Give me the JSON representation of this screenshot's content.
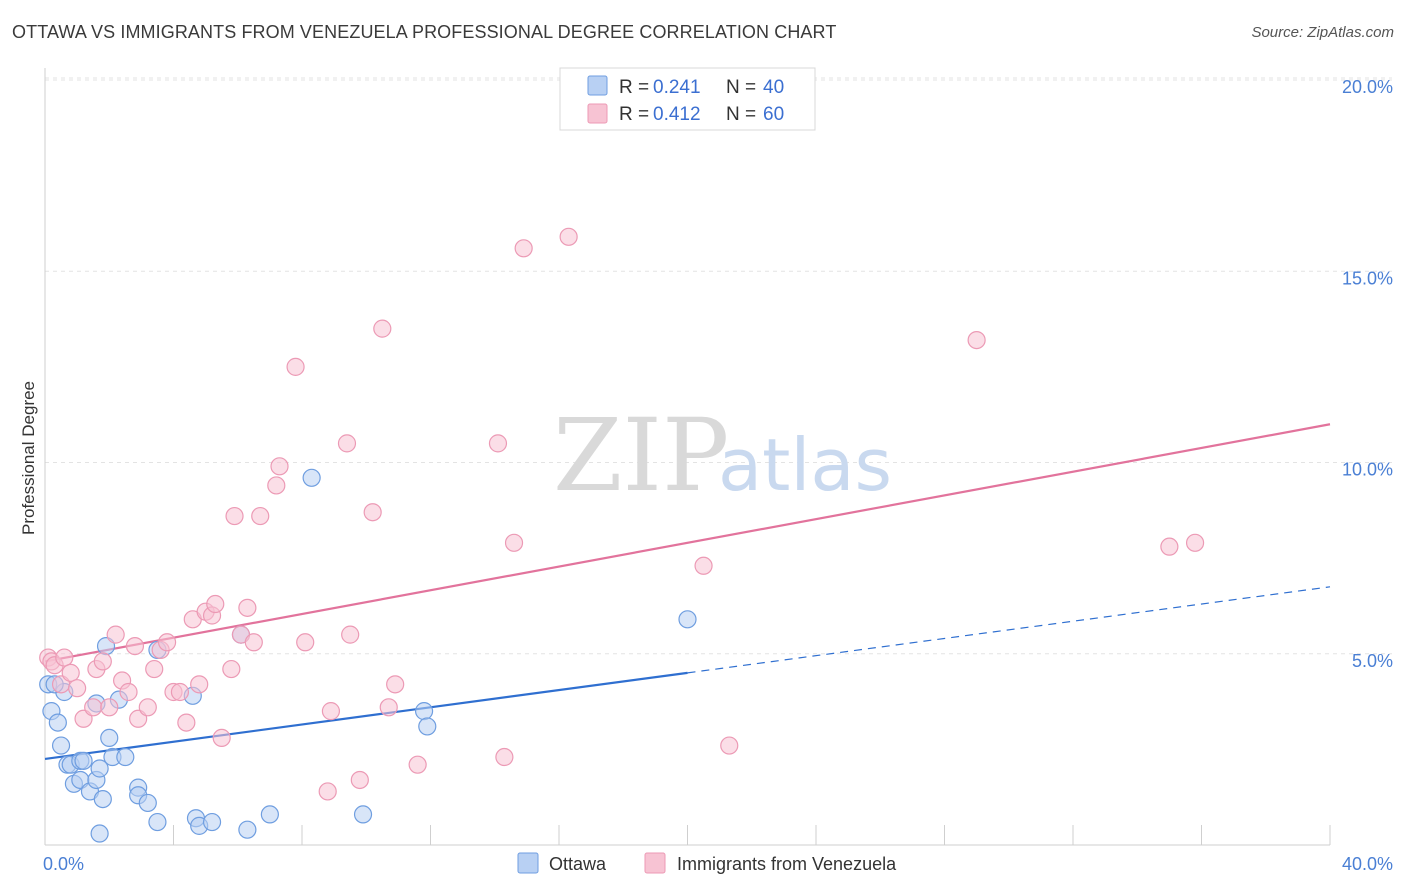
{
  "title": "OTTAWA VS IMMIGRANTS FROM VENEZUELA PROFESSIONAL DEGREE CORRELATION CHART",
  "source": "Source: ZipAtlas.com",
  "watermark": {
    "zip": "ZIP",
    "atlas": "atlas"
  },
  "colors": {
    "ottawa_fill": "#b8d0f3",
    "ottawa_stroke": "#6f9ee0",
    "ottawa_line": "#2f6fd0",
    "venezuela_fill": "#f7c3d3",
    "venezuela_stroke": "#ec9ab5",
    "venezuela_line": "#e2739c",
    "grid": "#e3e3e3",
    "tick_text": "#4a7fd4"
  },
  "legend": {
    "entries": [
      {
        "r_label": "R =",
        "r_value": "0.241",
        "n_label": "N =",
        "n_value": "40"
      },
      {
        "r_label": "R =",
        "r_value": "0.412",
        "n_label": "N =",
        "n_value": "60"
      }
    ]
  },
  "chart_data": {
    "type": "scatter",
    "title": "OTTAWA VS IMMIGRANTS FROM VENEZUELA PROFESSIONAL DEGREE CORRELATION CHART",
    "xlabel": "",
    "ylabel": "Professional Degree",
    "xlim": [
      0,
      40
    ],
    "ylim": [
      0,
      20
    ],
    "x_tick_labels": [
      "0.0%",
      "40.0%"
    ],
    "y_tick_labels": [
      {
        "value": 5,
        "label": "5.0%"
      },
      {
        "value": 10,
        "label": "10.0%"
      },
      {
        "value": 15,
        "label": "15.0%"
      },
      {
        "value": 20,
        "label": "20.0%"
      }
    ],
    "legend_position": "top-center",
    "series": [
      {
        "name": "Ottawa",
        "r": 0.241,
        "n": 40,
        "trend": {
          "x0": 0,
          "y0": 2.25,
          "x1": 20,
          "y1": 4.5,
          "dashed_to_x": 40,
          "dashed_to_y": 6.75
        },
        "points": [
          [
            0.1,
            4.2
          ],
          [
            0.2,
            3.5
          ],
          [
            0.4,
            3.2
          ],
          [
            0.5,
            2.6
          ],
          [
            0.6,
            4.0
          ],
          [
            0.7,
            2.1
          ],
          [
            0.8,
            2.1
          ],
          [
            0.9,
            1.6
          ],
          [
            1.1,
            2.2
          ],
          [
            1.1,
            1.7
          ],
          [
            1.2,
            2.2
          ],
          [
            1.4,
            1.4
          ],
          [
            1.6,
            1.7
          ],
          [
            1.6,
            3.7
          ],
          [
            1.7,
            2.0
          ],
          [
            1.8,
            1.2
          ],
          [
            1.7,
            0.3
          ],
          [
            1.9,
            5.2
          ],
          [
            2.0,
            2.8
          ],
          [
            2.1,
            2.3
          ],
          [
            2.3,
            3.8
          ],
          [
            2.5,
            2.3
          ],
          [
            2.9,
            1.5
          ],
          [
            2.9,
            1.3
          ],
          [
            3.2,
            1.1
          ],
          [
            3.5,
            5.1
          ],
          [
            3.5,
            0.6
          ],
          [
            4.6,
            3.9
          ],
          [
            4.7,
            0.7
          ],
          [
            4.8,
            0.5
          ],
          [
            5.2,
            0.6
          ],
          [
            6.1,
            5.5
          ],
          [
            6.3,
            0.4
          ],
          [
            7.0,
            0.8
          ],
          [
            8.3,
            9.6
          ],
          [
            9.9,
            0.8
          ],
          [
            11.8,
            3.5
          ],
          [
            11.9,
            3.1
          ],
          [
            20.0,
            5.9
          ],
          [
            0.3,
            4.2
          ]
        ]
      },
      {
        "name": "Immigrants from Venezuela",
        "r": 0.412,
        "n": 60,
        "trend": {
          "x0": 0,
          "y0": 4.8,
          "x1": 40,
          "y1": 11.0
        },
        "points": [
          [
            0.1,
            4.9
          ],
          [
            0.2,
            4.8
          ],
          [
            0.3,
            4.7
          ],
          [
            0.5,
            4.2
          ],
          [
            0.6,
            4.9
          ],
          [
            0.8,
            4.5
          ],
          [
            1.0,
            4.1
          ],
          [
            1.2,
            3.3
          ],
          [
            1.5,
            3.6
          ],
          [
            1.6,
            4.6
          ],
          [
            1.8,
            4.8
          ],
          [
            2.0,
            3.6
          ],
          [
            2.2,
            5.5
          ],
          [
            2.4,
            4.3
          ],
          [
            2.6,
            4.0
          ],
          [
            2.8,
            5.2
          ],
          [
            2.9,
            3.3
          ],
          [
            3.2,
            3.6
          ],
          [
            3.4,
            4.6
          ],
          [
            3.6,
            5.1
          ],
          [
            3.8,
            5.3
          ],
          [
            4.0,
            4.0
          ],
          [
            4.2,
            4.0
          ],
          [
            4.4,
            3.2
          ],
          [
            4.6,
            5.9
          ],
          [
            4.8,
            4.2
          ],
          [
            5.0,
            6.1
          ],
          [
            5.2,
            6.0
          ],
          [
            5.3,
            6.3
          ],
          [
            5.5,
            2.8
          ],
          [
            5.8,
            4.6
          ],
          [
            5.9,
            8.6
          ],
          [
            6.1,
            5.5
          ],
          [
            6.3,
            6.2
          ],
          [
            6.5,
            5.3
          ],
          [
            6.7,
            8.6
          ],
          [
            7.2,
            9.4
          ],
          [
            7.3,
            9.9
          ],
          [
            7.8,
            12.5
          ],
          [
            8.1,
            5.3
          ],
          [
            8.8,
            1.4
          ],
          [
            8.9,
            3.5
          ],
          [
            9.4,
            10.5
          ],
          [
            9.5,
            5.5
          ],
          [
            9.8,
            1.7
          ],
          [
            10.2,
            8.7
          ],
          [
            10.5,
            13.5
          ],
          [
            10.7,
            3.6
          ],
          [
            10.9,
            4.2
          ],
          [
            11.6,
            2.1
          ],
          [
            14.1,
            10.5
          ],
          [
            14.3,
            2.3
          ],
          [
            14.6,
            7.9
          ],
          [
            14.9,
            15.6
          ],
          [
            16.3,
            15.9
          ],
          [
            20.5,
            7.3
          ],
          [
            21.3,
            2.6
          ],
          [
            29.0,
            13.2
          ],
          [
            35.0,
            7.8
          ],
          [
            35.8,
            7.9
          ]
        ]
      }
    ]
  },
  "bottom_legend": [
    "Ottawa",
    "Immigrants from Venezuela"
  ]
}
